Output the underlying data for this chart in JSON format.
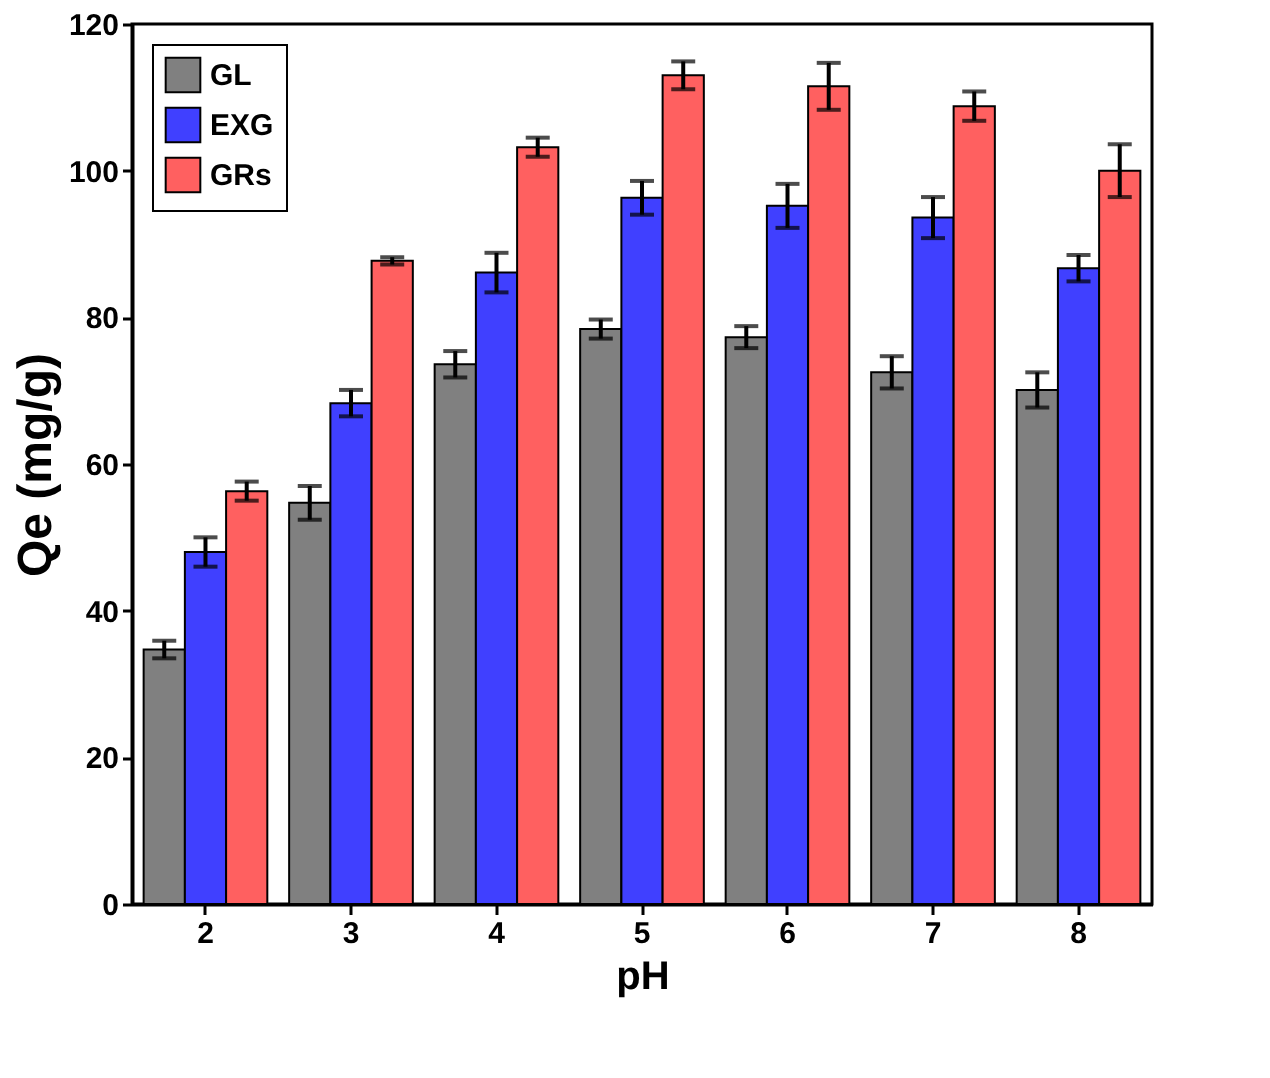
{
  "chart_data": {
    "type": "bar",
    "xlabel": "pH",
    "ylabel": "Qe (mg/g)",
    "categories": [
      "2",
      "3",
      "4",
      "5",
      "6",
      "7",
      "8"
    ],
    "series": [
      {
        "name": "GL",
        "color": "#808080",
        "values": [
          34.7,
          54.7,
          73.6,
          78.4,
          77.3,
          72.5,
          70.1
        ],
        "errors": [
          1.2,
          2.3,
          1.8,
          1.3,
          1.5,
          2.2,
          2.4
        ]
      },
      {
        "name": "EXG",
        "color": "#4040ff",
        "values": [
          48,
          68.3,
          86.1,
          96.3,
          95.2,
          93.6,
          86.7
        ],
        "errors": [
          2,
          1.8,
          2.7,
          2.3,
          3,
          2.8,
          1.8
        ]
      },
      {
        "name": "GRs",
        "color": "#ff6060",
        "values": [
          56.3,
          87.7,
          103.2,
          113,
          111.5,
          108.8,
          100
        ],
        "errors": [
          1.3,
          0.5,
          1.3,
          1.9,
          3.2,
          2,
          3.6
        ]
      }
    ],
    "ylim": [
      0,
      120
    ],
    "yticks": [
      0,
      20,
      40,
      60,
      80,
      100,
      120
    ],
    "grid": false,
    "legend": "top left"
  }
}
